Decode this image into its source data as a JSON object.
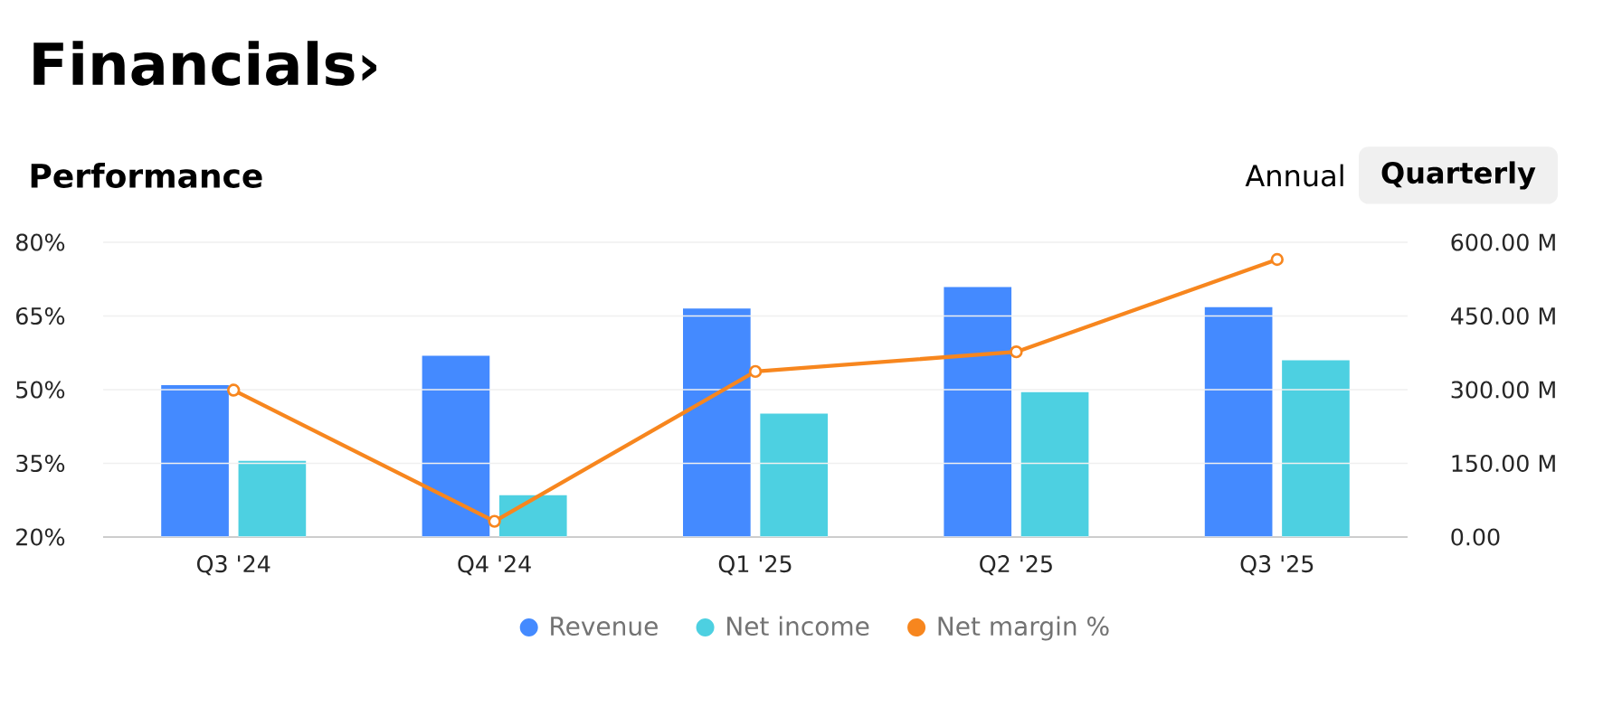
{
  "chart_data": {
    "type": "bar",
    "title": "Financials›",
    "subtitle": "Performance",
    "annotations": [
      "Annual",
      "Quarterly"
    ],
    "categories": [
      "Q3 '24",
      "Q4 '24",
      "Q1 '25",
      "Q2 '25",
      "Q3 '25"
    ],
    "series": [
      {
        "name": "Revenue",
        "axis": "y2",
        "color": "#448aff",
        "values": [
          309,
          369,
          465,
          509,
          468
        ]
      },
      {
        "name": "Net income",
        "axis": "y2",
        "color": "#4dd0e1",
        "values": [
          155,
          85,
          251,
          295,
          360
        ]
      },
      {
        "name": "Net margin %",
        "type": "line",
        "color": "#f7861e",
        "marker": "circle",
        "values": [
          49.9,
          23.2,
          53.7,
          57.7,
          76.5
        ]
      }
    ],
    "ylim": [
      20,
      80
    ],
    "yticks": [
      {
        "value": 20,
        "label": "20%"
      },
      {
        "value": 35,
        "label": "35%"
      },
      {
        "value": 50,
        "label": "50%"
      },
      {
        "value": 65,
        "label": "65%"
      },
      {
        "value": 80,
        "label": "80%"
      }
    ],
    "y2lim": [
      0,
      600
    ],
    "y2ticks": [
      {
        "value": 0,
        "label": "0.00"
      },
      {
        "value": 150,
        "label": "150.00 M"
      },
      {
        "value": 300,
        "label": "300.00 M"
      },
      {
        "value": 450,
        "label": "450.00 M"
      },
      {
        "value": 600,
        "label": "600.00 M"
      }
    ],
    "grid": "y",
    "legend": "bottom"
  }
}
